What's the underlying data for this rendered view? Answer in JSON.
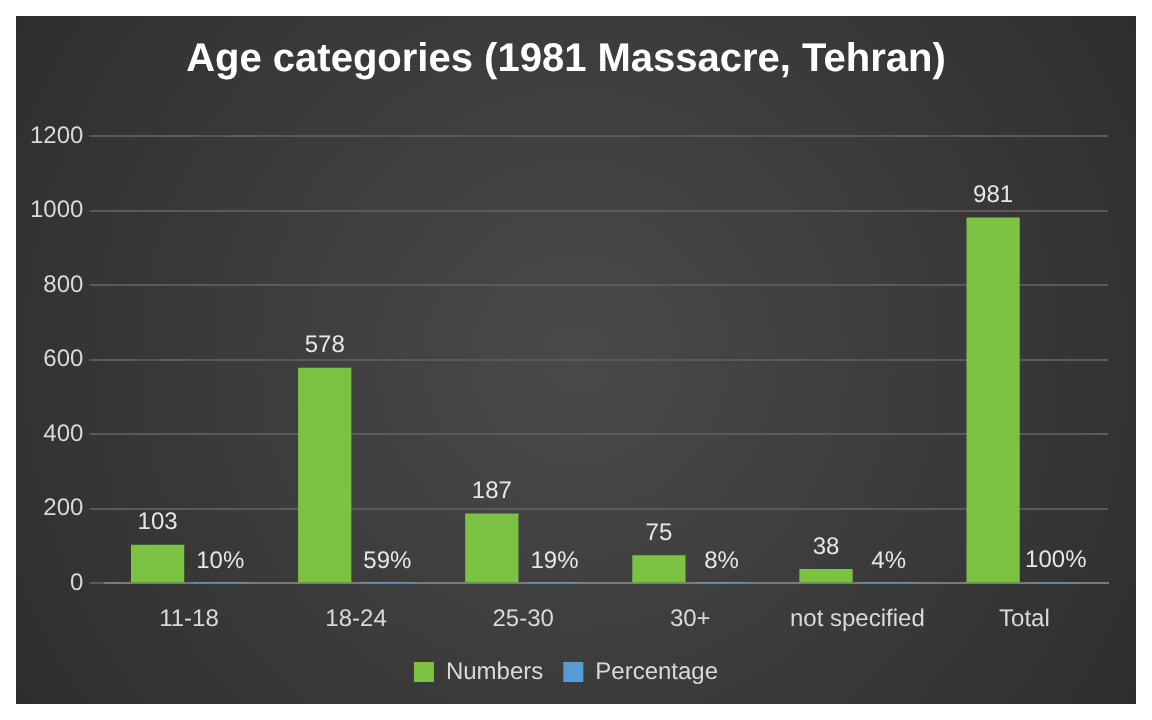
{
  "chart_data": {
    "type": "bar",
    "title": "Age categories (1981 Massacre, Tehran)",
    "categories": [
      "11-18",
      "18-24",
      "25-30",
      "30+",
      "not specified",
      "Total"
    ],
    "series": [
      {
        "name": "Numbers",
        "color": "#7cc242",
        "values": [
          103,
          578,
          187,
          75,
          38,
          981
        ],
        "value_labels": [
          "103",
          "578",
          "187",
          "75",
          "38",
          "981"
        ]
      },
      {
        "name": "Percentage",
        "color": "#5b9bd5",
        "values": [
          0.1,
          0.59,
          0.19,
          0.08,
          0.04,
          1
        ],
        "value_labels": [
          "10%",
          "59%",
          "19%",
          "8%",
          "4%",
          "100%"
        ]
      }
    ],
    "ylim": [
      0,
      1200
    ],
    "yticks": [
      0,
      200,
      400,
      600,
      800,
      1000,
      1200
    ],
    "grid": "y",
    "legend": "bottom"
  }
}
